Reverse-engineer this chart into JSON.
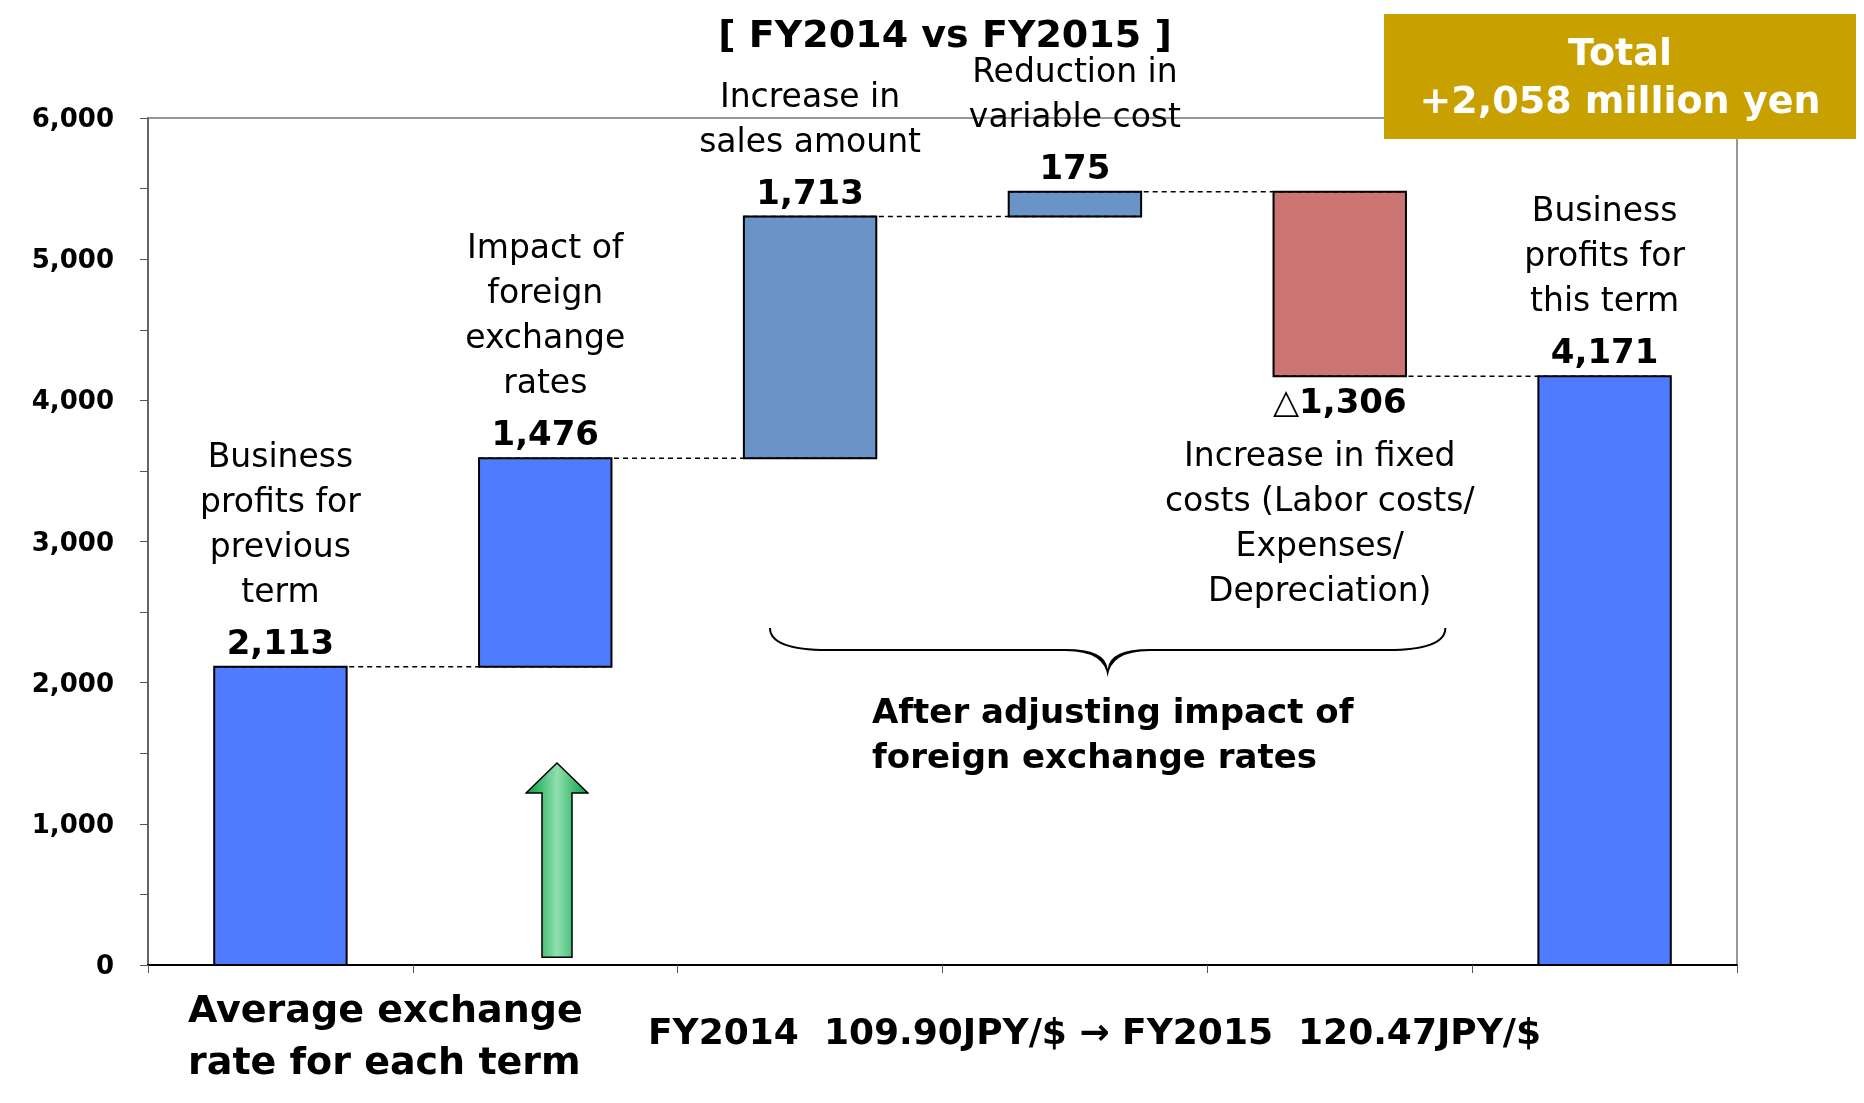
{
  "chart_data": {
    "type": "bar",
    "title": "[ FY2014 vs FY2015 ]",
    "categories": [
      null,
      null,
      null,
      null,
      null,
      null
    ],
    "base": [
      0,
      2113,
      3589,
      5302,
      5477,
      0
    ],
    "values": [
      2113,
      1476,
      1713,
      175,
      -1306,
      4171
    ],
    "value_labels": [
      "2,113",
      "1,476",
      "1,713",
      "175",
      "△1,306",
      "4,171"
    ],
    "colors": [
      "#4f7bff",
      "#4f7bff",
      "#6a93c8",
      "#6a93c8",
      "#cc7472",
      "#4f7bff"
    ],
    "ylim": [
      0,
      6000
    ],
    "yticks": [
      {
        "value": 0,
        "label": "0"
      },
      {
        "value": 1000,
        "label": "1,000"
      },
      {
        "value": 2000,
        "label": "2,000"
      },
      {
        "value": 3000,
        "label": "3,000"
      },
      {
        "value": 4000,
        "label": "4,000"
      },
      {
        "value": 5000,
        "label": "5,000"
      },
      {
        "value": 6000,
        "label": "6,000"
      }
    ],
    "grid": false,
    "annotations": [
      "Business\nprofits for\nprevious\nterm",
      "Impact of\nforeign\nexchange\nrates",
      "Increase in\nsales amount",
      "Reduction in\nvariable cost",
      "Increase in fixed\ncosts (Labor costs/\nExpenses/\nDepreciation)",
      "Business\nprofits for\nthis term",
      "Total\n+2,058 million yen",
      "After adjusting impact of\nforeign exchange rates",
      "Average exchange\nrate for each term",
      "FY2014  109.90JPY/$ → FY2015  120.47JPY/$"
    ]
  }
}
